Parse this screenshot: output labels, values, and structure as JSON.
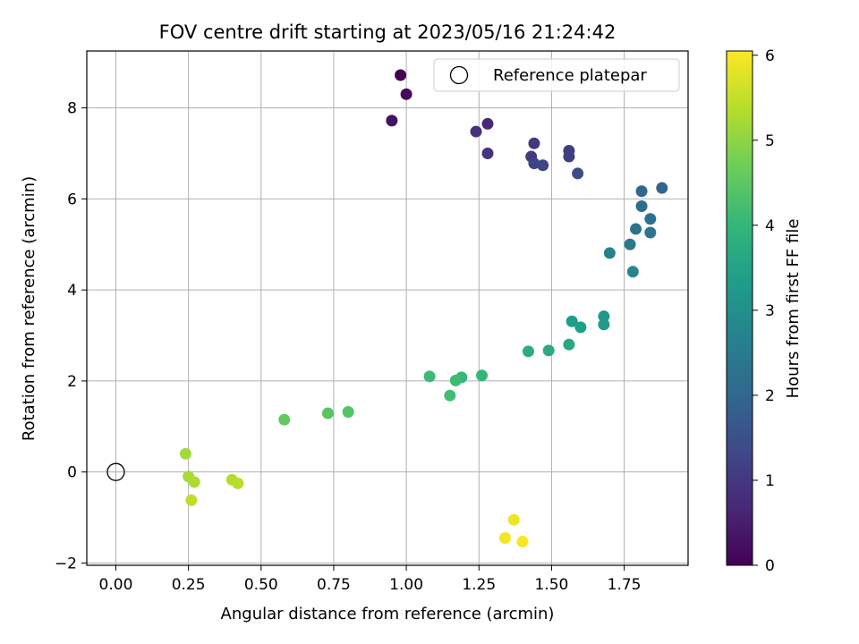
{
  "chart_data": {
    "type": "scatter",
    "title": "FOV centre drift starting at 2023/05/16 21:24:42",
    "xlabel": "Angular distance from reference (arcmin)",
    "ylabel": "Rotation from reference (arcmin)",
    "xlim": [
      -0.1,
      1.97
    ],
    "ylim": [
      -2.05,
      9.25
    ],
    "xticks": [
      0.0,
      0.25,
      0.5,
      0.75,
      1.0,
      1.25,
      1.5,
      1.75
    ],
    "xtick_labels": [
      "0.00",
      "0.25",
      "0.50",
      "0.75",
      "1.00",
      "1.25",
      "1.50",
      "1.75"
    ],
    "yticks": [
      -2,
      0,
      2,
      4,
      6,
      8
    ],
    "ytick_labels": [
      "−2",
      "0",
      "2",
      "4",
      "6",
      "8"
    ],
    "grid": true,
    "legend": {
      "placement": "upper right",
      "entries": [
        "Reference platepar"
      ]
    },
    "reference_point": {
      "x": 0.0,
      "y": 0.0
    },
    "colorbar": {
      "label": "Hours from first FF file",
      "range": [
        0,
        6.05
      ],
      "ticks": [
        0,
        1,
        2,
        3,
        4,
        5,
        6
      ],
      "tick_labels": [
        "0",
        "1",
        "2",
        "3",
        "4",
        "5",
        "6"
      ],
      "colormap": "viridis",
      "colors": [
        "#440154",
        "#482878",
        "#3e4989",
        "#31688e",
        "#26828e",
        "#1f9e89",
        "#35b779",
        "#6ece58",
        "#b5de2b",
        "#fde725"
      ]
    },
    "series": [
      {
        "points": [
          {
            "x": 0.98,
            "y": 8.72,
            "c": 0.0
          },
          {
            "x": 1.0,
            "y": 8.3,
            "c": 0.15
          },
          {
            "x": 0.95,
            "y": 7.72,
            "c": 0.3
          },
          {
            "x": 1.28,
            "y": 7.65,
            "c": 0.7
          },
          {
            "x": 1.24,
            "y": 7.48,
            "c": 0.85
          },
          {
            "x": 1.44,
            "y": 7.22,
            "c": 1.0
          },
          {
            "x": 1.28,
            "y": 7.0,
            "c": 0.9
          },
          {
            "x": 1.56,
            "y": 7.06,
            "c": 1.1
          },
          {
            "x": 1.43,
            "y": 6.93,
            "c": 1.05
          },
          {
            "x": 1.56,
            "y": 6.93,
            "c": 1.15
          },
          {
            "x": 1.44,
            "y": 6.78,
            "c": 1.2
          },
          {
            "x": 1.47,
            "y": 6.74,
            "c": 1.25
          },
          {
            "x": 1.59,
            "y": 6.56,
            "c": 1.4
          },
          {
            "x": 1.88,
            "y": 6.24,
            "c": 1.95
          },
          {
            "x": 1.81,
            "y": 6.17,
            "c": 2.05
          },
          {
            "x": 1.81,
            "y": 5.84,
            "c": 2.15
          },
          {
            "x": 1.84,
            "y": 5.56,
            "c": 2.25
          },
          {
            "x": 1.79,
            "y": 5.34,
            "c": 2.3
          },
          {
            "x": 1.84,
            "y": 5.26,
            "c": 2.35
          },
          {
            "x": 1.77,
            "y": 5.0,
            "c": 2.45
          },
          {
            "x": 1.7,
            "y": 4.81,
            "c": 2.65
          },
          {
            "x": 1.78,
            "y": 4.4,
            "c": 2.75
          },
          {
            "x": 1.68,
            "y": 3.42,
            "c": 3.25
          },
          {
            "x": 1.57,
            "y": 3.31,
            "c": 3.35
          },
          {
            "x": 1.68,
            "y": 3.24,
            "c": 3.3
          },
          {
            "x": 1.6,
            "y": 3.18,
            "c": 3.4
          },
          {
            "x": 1.56,
            "y": 2.8,
            "c": 3.6
          },
          {
            "x": 1.42,
            "y": 2.65,
            "c": 3.75
          },
          {
            "x": 1.49,
            "y": 2.67,
            "c": 3.7
          },
          {
            "x": 1.08,
            "y": 2.1,
            "c": 4.1
          },
          {
            "x": 1.26,
            "y": 2.12,
            "c": 4.0
          },
          {
            "x": 1.19,
            "y": 2.08,
            "c": 4.05
          },
          {
            "x": 1.17,
            "y": 2.01,
            "c": 4.15
          },
          {
            "x": 1.15,
            "y": 1.68,
            "c": 4.2
          },
          {
            "x": 0.8,
            "y": 1.32,
            "c": 4.4
          },
          {
            "x": 0.73,
            "y": 1.29,
            "c": 4.45
          },
          {
            "x": 0.58,
            "y": 1.15,
            "c": 4.55
          },
          {
            "x": 0.24,
            "y": 0.4,
            "c": 5.2
          },
          {
            "x": 0.25,
            "y": -0.1,
            "c": 5.25
          },
          {
            "x": 0.27,
            "y": -0.22,
            "c": 5.3
          },
          {
            "x": 0.4,
            "y": -0.17,
            "c": 5.35
          },
          {
            "x": 0.42,
            "y": -0.25,
            "c": 5.4
          },
          {
            "x": 0.26,
            "y": -0.62,
            "c": 5.45
          },
          {
            "x": 1.37,
            "y": -1.05,
            "c": 5.9
          },
          {
            "x": 1.34,
            "y": -1.45,
            "c": 5.95
          },
          {
            "x": 1.4,
            "y": -1.53,
            "c": 6.0
          }
        ]
      }
    ]
  }
}
